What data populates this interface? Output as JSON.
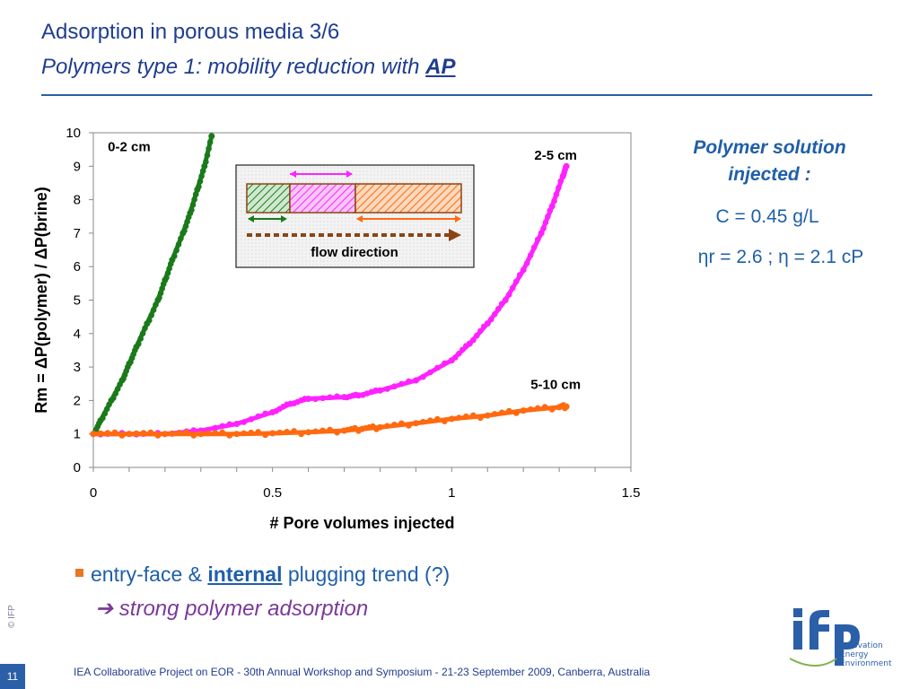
{
  "slide": {
    "title": "Adsorption in porous media 3/6",
    "subtitle_prefix": "Polymers type 1: mobility reduction with ",
    "subtitle_emph": "AP",
    "page_number": "11",
    "copyright": "© IFP",
    "footer": "IEA Collaborative Project on EOR - 30th Annual Workshop and Symposium - 21-23 September 2009, Canberra, Australia"
  },
  "side_panel": {
    "title": "Polymer solution injected :",
    "concentration": "C = 0.45 g/L",
    "viscosity": "ηr = 2.6 ; η = 2.1 cP"
  },
  "bullet": {
    "prefix": "entry-face & ",
    "emph": "internal",
    "suffix": " plugging trend (?)",
    "conclusion": "➔ strong polymer adsorption"
  },
  "logo": {
    "text": "ifp",
    "tagline": [
      "Innovation",
      "Energy",
      "Environment"
    ]
  },
  "inset": {
    "caption": "flow direction"
  },
  "colors": {
    "title": "#1f3d8f",
    "s_0_2": "#1a7a1a",
    "s_2_5": "#ff22ff",
    "s_5_10": "#ff6a10",
    "accent": "#e87722"
  },
  "chart_data": {
    "type": "scatter",
    "title": "",
    "xlabel": "# Pore volumes injected",
    "ylabel": "Rm = ΔP(polymer) / ΔP(brine)",
    "xlim": [
      0,
      1.5
    ],
    "ylim": [
      0,
      10
    ],
    "x_ticks": [
      "0",
      "0.5",
      "1",
      "1.5"
    ],
    "y_ticks": [
      "0",
      "1",
      "2",
      "3",
      "4",
      "5",
      "6",
      "7",
      "8",
      "9",
      "10"
    ],
    "grid": false,
    "series": [
      {
        "name": "0-2 cm",
        "color": "#1a7a1a",
        "x": [
          0.0,
          0.02,
          0.05,
          0.08,
          0.1,
          0.12,
          0.15,
          0.18,
          0.2,
          0.22,
          0.25,
          0.27,
          0.29,
          0.31,
          0.33
        ],
        "y": [
          1.0,
          1.4,
          2.0,
          2.6,
          3.1,
          3.6,
          4.3,
          5.0,
          5.6,
          6.2,
          7.0,
          7.6,
          8.3,
          9.0,
          9.9
        ]
      },
      {
        "name": "2-5 cm",
        "color": "#ff22ff",
        "x": [
          0.0,
          0.1,
          0.2,
          0.3,
          0.4,
          0.5,
          0.55,
          0.6,
          0.7,
          0.74,
          0.8,
          0.9,
          1.0,
          1.05,
          1.1,
          1.15,
          1.2,
          1.25,
          1.28,
          1.31,
          1.32
        ],
        "y": [
          1.0,
          1.0,
          1.0,
          1.1,
          1.3,
          1.65,
          1.9,
          2.05,
          2.1,
          2.15,
          2.3,
          2.6,
          3.2,
          3.7,
          4.3,
          5.0,
          5.9,
          7.0,
          7.8,
          8.7,
          9.0
        ]
      },
      {
        "name": "5-10 cm",
        "color": "#ff6a10",
        "x": [
          0.0,
          0.1,
          0.2,
          0.3,
          0.4,
          0.5,
          0.6,
          0.7,
          0.75,
          0.8,
          0.9,
          1.0,
          1.1,
          1.2,
          1.3,
          1.32
        ],
        "y": [
          1.0,
          1.0,
          1.0,
          1.0,
          1.0,
          1.02,
          1.05,
          1.1,
          1.15,
          1.2,
          1.32,
          1.45,
          1.55,
          1.7,
          1.8,
          1.82
        ]
      }
    ],
    "annotations": [
      "0-2 cm",
      "2-5 cm",
      "5-10 cm"
    ]
  }
}
